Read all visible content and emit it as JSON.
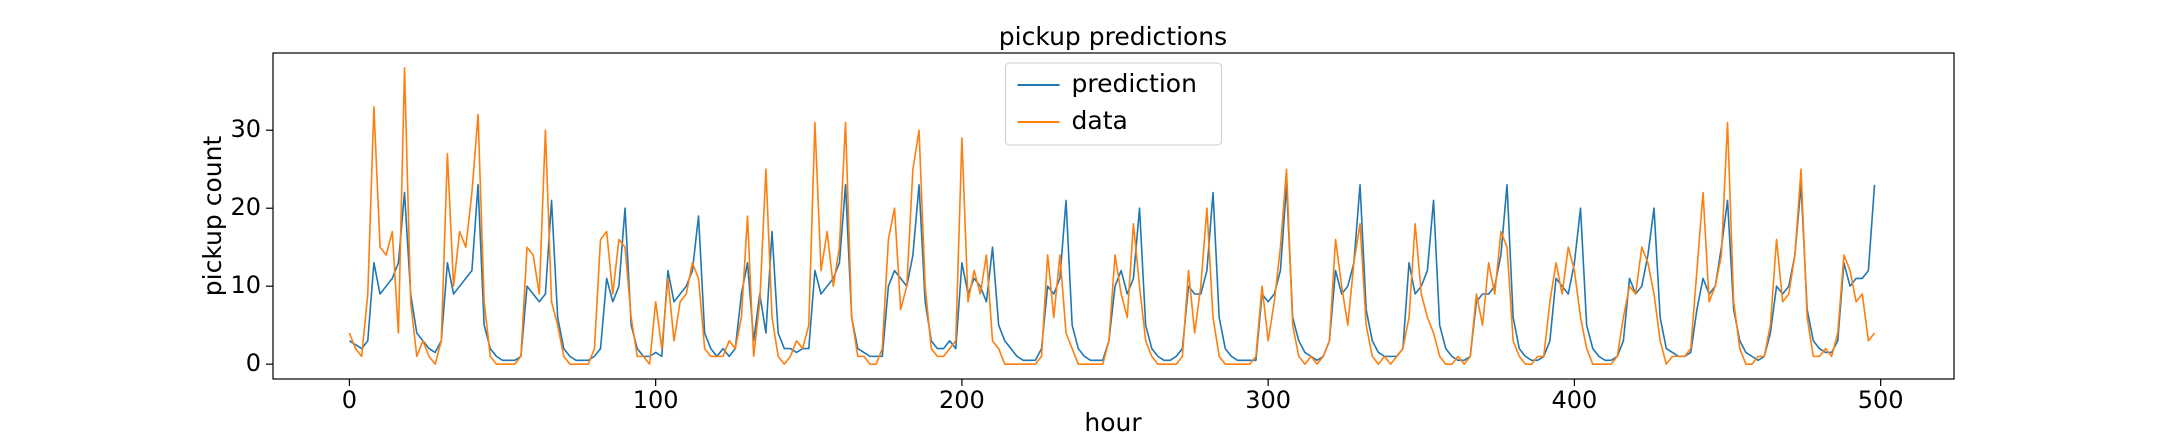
{
  "chart_data": {
    "type": "line",
    "title": "pickup predictions",
    "x_label": "hour",
    "y_label": "pickup count",
    "x": [
      0,
      2,
      4,
      6,
      8,
      10,
      12,
      14,
      16,
      18,
      20,
      22,
      24,
      26,
      28,
      30,
      32,
      34,
      36,
      38,
      40,
      42,
      44,
      46,
      48,
      50,
      52,
      54,
      56,
      58,
      60,
      62,
      64,
      66,
      68,
      70,
      72,
      74,
      76,
      78,
      80,
      82,
      84,
      86,
      88,
      90,
      92,
      94,
      96,
      98,
      100,
      102,
      104,
      106,
      108,
      110,
      112,
      114,
      116,
      118,
      120,
      122,
      124,
      126,
      128,
      130,
      132,
      134,
      136,
      138,
      140,
      142,
      144,
      146,
      148,
      150,
      152,
      154,
      156,
      158,
      160,
      162,
      164,
      166,
      168,
      170,
      172,
      174,
      176,
      178,
      180,
      182,
      184,
      186,
      188,
      190,
      192,
      194,
      196,
      198,
      200,
      202,
      204,
      206,
      208,
      210,
      212,
      214,
      216,
      218,
      220,
      222,
      224,
      226,
      228,
      230,
      232,
      234,
      236,
      238,
      240,
      242,
      244,
      246,
      248,
      250,
      252,
      254,
      256,
      258,
      260,
      262,
      264,
      266,
      268,
      270,
      272,
      274,
      276,
      278,
      280,
      282,
      284,
      286,
      288,
      290,
      292,
      294,
      296,
      298,
      300,
      302,
      304,
      306,
      308,
      310,
      312,
      314,
      316,
      318,
      320,
      322,
      324,
      326,
      328,
      330,
      332,
      334,
      336,
      338,
      340,
      342,
      344,
      346,
      348,
      350,
      352,
      354,
      356,
      358,
      360,
      362,
      364,
      366,
      368,
      370,
      372,
      374,
      376,
      378,
      380,
      382,
      384,
      386,
      388,
      390,
      392,
      394,
      396,
      398,
      400,
      402,
      404,
      406,
      408,
      410,
      412,
      414,
      416,
      418,
      420,
      422,
      424,
      426,
      428,
      430,
      432,
      434,
      436,
      438,
      440,
      442,
      444,
      446,
      448,
      450,
      452,
      454,
      456,
      458,
      460,
      462,
      464,
      466,
      468,
      470,
      472,
      474,
      476,
      478,
      480,
      482,
      484,
      486,
      488,
      490,
      492,
      494,
      496,
      498
    ],
    "series": [
      {
        "name": "prediction",
        "color": "#1f77b4",
        "values": [
          3,
          2.5,
          2,
          3,
          13,
          9,
          10,
          11,
          13,
          22,
          9,
          4,
          3,
          2,
          1.5,
          3,
          13,
          9,
          10,
          11,
          12,
          23,
          5,
          2,
          1,
          0.5,
          0.5,
          0.5,
          1,
          10,
          9,
          8,
          9,
          21,
          6,
          2,
          1,
          0.5,
          0.5,
          0.5,
          1,
          2,
          11,
          8,
          10,
          20,
          5,
          2,
          1,
          1,
          1.5,
          1,
          12,
          8,
          9,
          10,
          12,
          19,
          4,
          2,
          1,
          2,
          1,
          2,
          9,
          13,
          3,
          9,
          4,
          17,
          4,
          2,
          2,
          1.5,
          2,
          2,
          12,
          9,
          10,
          11,
          13,
          23,
          6,
          2,
          1.5,
          1,
          1,
          1,
          10,
          12,
          11,
          10,
          14,
          23,
          8,
          3,
          2,
          2,
          3,
          2,
          13,
          9,
          11,
          10,
          8,
          15,
          5,
          3,
          2,
          1,
          0.5,
          0.5,
          0.5,
          2,
          10,
          9,
          11,
          21,
          5,
          2,
          1,
          0.5,
          0.5,
          0.5,
          3,
          10,
          12,
          9,
          11,
          20,
          5,
          2,
          1,
          0.5,
          0.5,
          1,
          2,
          10,
          9,
          9,
          12,
          22,
          6,
          2,
          1,
          0.5,
          0.5,
          0.5,
          0.5,
          9,
          8,
          9,
          12,
          23,
          6,
          3,
          1.5,
          1,
          0.5,
          1,
          3,
          12,
          9,
          10,
          13,
          23,
          7,
          3,
          1.5,
          1,
          1,
          1,
          2,
          13,
          9,
          10,
          12,
          21,
          5,
          2,
          1,
          0.5,
          0.5,
          1,
          8,
          9,
          9,
          10,
          14,
          23,
          6,
          2,
          1,
          0.5,
          0.5,
          1,
          3,
          11,
          10,
          9,
          13,
          20,
          5,
          2,
          1,
          0.5,
          0.5,
          1,
          3,
          11,
          9,
          10,
          14,
          20,
          6,
          2,
          1.5,
          1,
          1,
          1.5,
          7,
          11,
          9,
          10,
          15,
          21,
          7,
          3,
          1.5,
          1,
          0.5,
          1,
          4,
          10,
          9,
          10,
          14,
          23,
          7,
          3,
          2,
          1.5,
          1.5,
          3,
          13,
          10,
          11,
          11,
          12,
          23
        ]
      },
      {
        "name": "data",
        "color": "#ff7f0e",
        "values": [
          4,
          2,
          1,
          9,
          33,
          15,
          14,
          17,
          4,
          38,
          8,
          1,
          3,
          1,
          0,
          3,
          27,
          10,
          17,
          15,
          22,
          32,
          8,
          1,
          0,
          0,
          0,
          0,
          1,
          15,
          14,
          9,
          30,
          8,
          5,
          1,
          0,
          0,
          0,
          0,
          2,
          16,
          17,
          9,
          16,
          15,
          6,
          1,
          1,
          0,
          8,
          2,
          11,
          3,
          8,
          9,
          13,
          11,
          2,
          1,
          1,
          1,
          3,
          2,
          6,
          19,
          1,
          8,
          25,
          6,
          1,
          0,
          1,
          3,
          2,
          5,
          31,
          12,
          17,
          10,
          15,
          31,
          6,
          1,
          1,
          0,
          0,
          2,
          16,
          20,
          7,
          10,
          25,
          30,
          10,
          2,
          1,
          1,
          2,
          3,
          29,
          8,
          12,
          9,
          14,
          3,
          2,
          0,
          0,
          0,
          0,
          0,
          0,
          1,
          14,
          6,
          14,
          4,
          2,
          0,
          0,
          0,
          0,
          0,
          3,
          14,
          9,
          6,
          18,
          10,
          3,
          1,
          0,
          0,
          0,
          0,
          1,
          12,
          4,
          10,
          20,
          6,
          1,
          0,
          0,
          0,
          0,
          0,
          1,
          10,
          3,
          8,
          15,
          25,
          5,
          1,
          0,
          1,
          0,
          1,
          3,
          16,
          10,
          5,
          13,
          18,
          5,
          1,
          0,
          1,
          0,
          1,
          2,
          6,
          18,
          9,
          6,
          4,
          1,
          0,
          0,
          1,
          0,
          1,
          9,
          5,
          13,
          9,
          17,
          15,
          3,
          1,
          0,
          0,
          1,
          1,
          8,
          13,
          9,
          15,
          12,
          6,
          2,
          0,
          0,
          0,
          0,
          1,
          6,
          10,
          9,
          15,
          13,
          9,
          3,
          0,
          1,
          1,
          1,
          2,
          12,
          22,
          8,
          10,
          14,
          31,
          8,
          2,
          0,
          0,
          1,
          1,
          5,
          16,
          8,
          9,
          14,
          25,
          6,
          1,
          1,
          2,
          1,
          4,
          14,
          12,
          8,
          9,
          3,
          4
        ]
      }
    ],
    "xlim": [
      -24.95,
      523.95
    ],
    "xticks": [
      0,
      100,
      200,
      300,
      400,
      500
    ],
    "ylim": [
      -1.9,
      39.9
    ],
    "yticks": [
      0,
      10,
      20,
      30
    ],
    "legend": "upper center"
  }
}
